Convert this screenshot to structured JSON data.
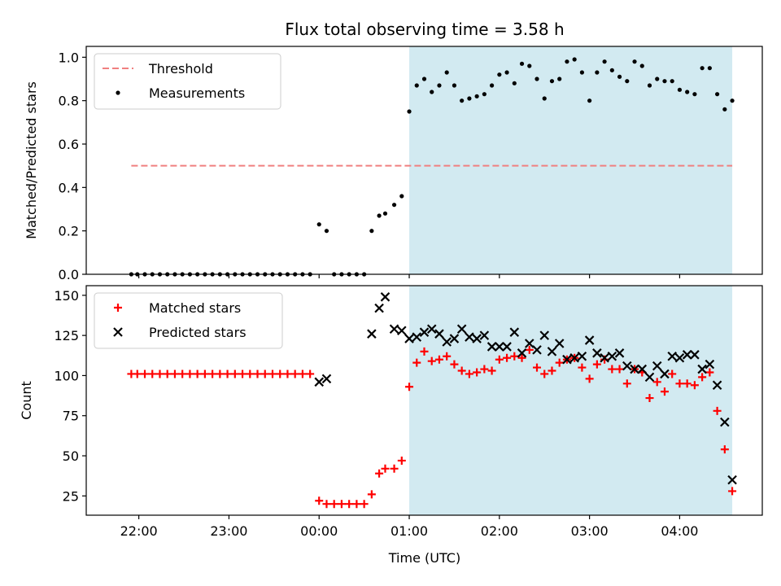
{
  "figure": {
    "title": "Flux total observing time = 3.58 h",
    "xlabel": "Time (UTC)"
  },
  "chart_data": [
    {
      "type": "scatter",
      "ylabel": "Matched/Predicted stars",
      "xlim": [
        "21:25",
        "04:55"
      ],
      "ylim": [
        0,
        1.05
      ],
      "yticks": [
        0.0,
        0.2,
        0.4,
        0.6,
        0.8,
        1.0
      ],
      "ytick_labels": [
        "0.0",
        "0.2",
        "0.4",
        "0.6",
        "0.8",
        "1.0"
      ],
      "legend_position": "top-left",
      "highlight_span": {
        "from": "01:00",
        "to": "04:35",
        "color": "#add8e6"
      },
      "threshold": {
        "name": "Threshold",
        "value": 0.5,
        "from": "21:55",
        "to": "04:35",
        "color": "#f08080",
        "style": "dashed"
      },
      "series": [
        {
          "name": "Measurements",
          "marker": "dot",
          "color": "#000000",
          "x": [
            "21:55",
            "21:59",
            "22:04",
            "22:09",
            "22:14",
            "22:19",
            "22:24",
            "22:29",
            "22:34",
            "22:39",
            "22:44",
            "22:49",
            "22:54",
            "22:59",
            "23:04",
            "23:09",
            "23:14",
            "23:19",
            "23:24",
            "23:29",
            "23:34",
            "23:39",
            "23:44",
            "23:49",
            "23:54",
            "00:00",
            "00:05",
            "00:10",
            "00:15",
            "00:20",
            "00:25",
            "00:30",
            "00:35",
            "00:40",
            "00:44",
            "00:50",
            "00:55",
            "01:00",
            "01:05",
            "01:10",
            "01:15",
            "01:20",
            "01:25",
            "01:30",
            "01:35",
            "01:40",
            "01:45",
            "01:50",
            "01:55",
            "02:00",
            "02:05",
            "02:10",
            "02:15",
            "02:20",
            "02:25",
            "02:30",
            "02:35",
            "02:40",
            "02:45",
            "02:50",
            "02:55",
            "03:00",
            "03:05",
            "03:10",
            "03:15",
            "03:20",
            "03:25",
            "03:30",
            "03:35",
            "03:40",
            "03:45",
            "03:50",
            "03:55",
            "04:00",
            "04:05",
            "04:10",
            "04:15",
            "04:20",
            "04:25",
            "04:30",
            "04:35"
          ],
          "y": [
            0,
            0,
            0,
            0,
            0,
            0,
            0,
            0,
            0,
            0,
            0,
            0,
            0,
            0,
            0,
            0,
            0,
            0,
            0,
            0,
            0,
            0,
            0,
            0,
            0,
            0.23,
            0.2,
            0,
            0,
            0,
            0,
            0,
            0.2,
            0.27,
            0.28,
            0.32,
            0.36,
            0.75,
            0.87,
            0.9,
            0.84,
            0.87,
            0.93,
            0.87,
            0.8,
            0.81,
            0.82,
            0.83,
            0.87,
            0.92,
            0.93,
            0.88,
            0.97,
            0.96,
            0.9,
            0.81,
            0.89,
            0.9,
            0.98,
            0.99,
            0.93,
            0.8,
            0.93,
            0.98,
            0.94,
            0.91,
            0.89,
            0.98,
            0.96,
            0.87,
            0.9,
            0.89,
            0.89,
            0.85,
            0.84,
            0.83,
            0.95,
            0.95,
            0.83,
            0.76,
            0.8
          ]
        }
      ]
    },
    {
      "type": "scatter",
      "ylabel": "Count",
      "xlabel": "Time (UTC)",
      "xlim": [
        "21:25",
        "04:55"
      ],
      "ylim": [
        13,
        156
      ],
      "yticks": [
        25,
        50,
        75,
        100,
        125,
        150
      ],
      "ytick_labels": [
        "25",
        "50",
        "75",
        "100",
        "125",
        "150"
      ],
      "xticks": [
        "22:00",
        "23:00",
        "00:00",
        "01:00",
        "02:00",
        "03:00",
        "04:00"
      ],
      "legend_position": "top-left",
      "highlight_span": {
        "from": "01:00",
        "to": "04:35",
        "color": "#add8e6"
      },
      "series": [
        {
          "name": "Matched stars",
          "marker": "plus",
          "color": "#ff0000",
          "x": [
            "21:55",
            "21:59",
            "22:04",
            "22:09",
            "22:14",
            "22:19",
            "22:24",
            "22:29",
            "22:34",
            "22:39",
            "22:44",
            "22:49",
            "22:54",
            "22:59",
            "23:04",
            "23:09",
            "23:14",
            "23:19",
            "23:24",
            "23:29",
            "23:34",
            "23:39",
            "23:44",
            "23:49",
            "23:54",
            "00:00",
            "00:05",
            "00:10",
            "00:15",
            "00:20",
            "00:25",
            "00:30",
            "00:35",
            "00:40",
            "00:44",
            "00:50",
            "00:55",
            "01:00",
            "01:05",
            "01:10",
            "01:15",
            "01:20",
            "01:25",
            "01:30",
            "01:35",
            "01:40",
            "01:45",
            "01:50",
            "01:55",
            "02:00",
            "02:05",
            "02:10",
            "02:15",
            "02:20",
            "02:25",
            "02:30",
            "02:35",
            "02:40",
            "02:45",
            "02:50",
            "02:55",
            "03:00",
            "03:05",
            "03:10",
            "03:15",
            "03:20",
            "03:25",
            "03:30",
            "03:35",
            "03:40",
            "03:45",
            "03:50",
            "03:55",
            "04:00",
            "04:05",
            "04:10",
            "04:15",
            "04:20",
            "04:25",
            "04:30",
            "04:35"
          ],
          "y": [
            101,
            101,
            101,
            101,
            101,
            101,
            101,
            101,
            101,
            101,
            101,
            101,
            101,
            101,
            101,
            101,
            101,
            101,
            101,
            101,
            101,
            101,
            101,
            101,
            101,
            22,
            20,
            20,
            20,
            20,
            20,
            20,
            26,
            39,
            42,
            42,
            47,
            93,
            108,
            115,
            109,
            110,
            112,
            107,
            103,
            101,
            102,
            104,
            103,
            110,
            111,
            112,
            111,
            116,
            105,
            101,
            103,
            108,
            110,
            111,
            105,
            98,
            107,
            110,
            104,
            104,
            95,
            104,
            102,
            86,
            96,
            90,
            101,
            95,
            95,
            94,
            99,
            102,
            78,
            54,
            28
          ]
        },
        {
          "name": "Predicted stars",
          "marker": "x",
          "color": "#000000",
          "x": [
            "00:00",
            "00:05",
            "00:35",
            "00:40",
            "00:44",
            "00:50",
            "00:55",
            "01:00",
            "01:05",
            "01:10",
            "01:15",
            "01:20",
            "01:25",
            "01:30",
            "01:35",
            "01:40",
            "01:45",
            "01:50",
            "01:55",
            "02:00",
            "02:05",
            "02:10",
            "02:15",
            "02:20",
            "02:25",
            "02:30",
            "02:35",
            "02:40",
            "02:45",
            "02:50",
            "02:55",
            "03:00",
            "03:05",
            "03:10",
            "03:15",
            "03:20",
            "03:25",
            "03:30",
            "03:35",
            "03:40",
            "03:45",
            "03:50",
            "03:55",
            "04:00",
            "04:05",
            "04:10",
            "04:15",
            "04:20",
            "04:25",
            "04:30",
            "04:35"
          ],
          "y": [
            96,
            98,
            126,
            142,
            149,
            129,
            128,
            123,
            124,
            127,
            129,
            126,
            121,
            123,
            129,
            124,
            123,
            125,
            118,
            118,
            118,
            127,
            114,
            120,
            116,
            125,
            115,
            120,
            110,
            111,
            112,
            122,
            114,
            111,
            112,
            114,
            106,
            104,
            104,
            99,
            106,
            101,
            112,
            111,
            113,
            113,
            104,
            107,
            94,
            71,
            35
          ]
        }
      ]
    }
  ]
}
